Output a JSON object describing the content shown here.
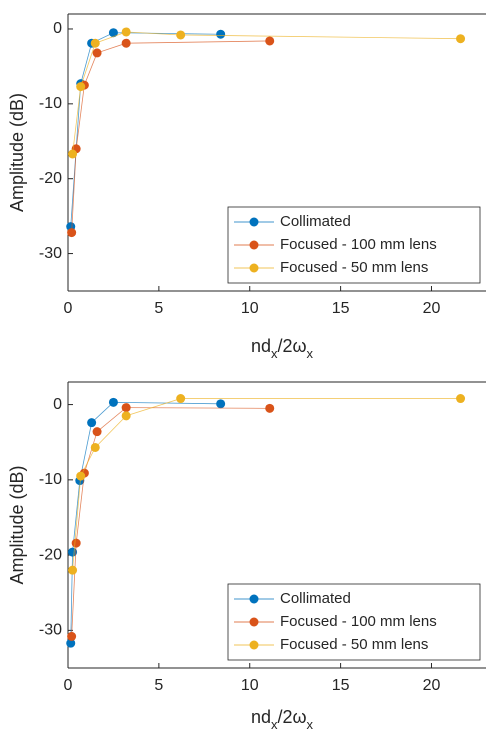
{
  "chart_data": [
    {
      "type": "line",
      "y_label": "Amplitude (dB)",
      "x_label_parts": [
        "nd",
        "x",
        "/2ω",
        "x"
      ],
      "xlim": [
        0,
        23
      ],
      "ylim": [
        -35,
        2
      ],
      "xticks": [
        0,
        5,
        10,
        15,
        20
      ],
      "yticks": [
        -30,
        -20,
        -10,
        0
      ],
      "legend": "lower right",
      "series": [
        {
          "name": "Collimated",
          "color": "#0072BD",
          "x": [
            0.15,
            0.7,
            1.3,
            2.5,
            8.4
          ],
          "values": [
            -26.4,
            -7.3,
            -1.9,
            -0.5,
            -0.7
          ]
        },
        {
          "name": "Focused - 100 mm lens",
          "color": "#D95319",
          "x": [
            0.2,
            0.45,
            0.9,
            1.6,
            3.2,
            11.1
          ],
          "values": [
            -27.2,
            -16,
            -7.5,
            -3.2,
            -1.9,
            -1.6
          ]
        },
        {
          "name": "Focused - 50 mm lens",
          "color": "#EDB120",
          "x": [
            0.25,
            0.7,
            1.5,
            3.2,
            6.2,
            21.6
          ],
          "values": [
            -16.7,
            -7.7,
            -1.9,
            -0.4,
            -0.8,
            -1.3
          ]
        }
      ]
    },
    {
      "type": "line",
      "y_label": "Amplitude (dB)",
      "x_label_parts": [
        "nd",
        "x",
        "/2ω",
        "x"
      ],
      "xlim": [
        0,
        23
      ],
      "ylim": [
        -35,
        3
      ],
      "xticks": [
        0,
        5,
        10,
        15,
        20
      ],
      "yticks": [
        -30,
        -20,
        -10,
        0
      ],
      "legend": "lower right",
      "series": [
        {
          "name": "Collimated",
          "color": "#0072BD",
          "x": [
            0.15,
            0.25,
            0.65,
            1.3,
            2.5,
            8.4
          ],
          "values": [
            -31.7,
            -19.6,
            -10.1,
            -2.4,
            0.3,
            0.1
          ]
        },
        {
          "name": "Focused - 100 mm lens",
          "color": "#D95319",
          "x": [
            0.2,
            0.45,
            0.9,
            1.6,
            3.2,
            11.1
          ],
          "values": [
            -30.8,
            -18.4,
            -9.1,
            -3.6,
            -0.4,
            -0.5
          ]
        },
        {
          "name": "Focused - 50 mm lens",
          "color": "#EDB120",
          "x": [
            0.25,
            0.7,
            1.5,
            3.2,
            6.2,
            21.6
          ],
          "values": [
            -22,
            -9.5,
            -5.7,
            -1.5,
            0.8,
            0.8
          ]
        }
      ]
    }
  ]
}
